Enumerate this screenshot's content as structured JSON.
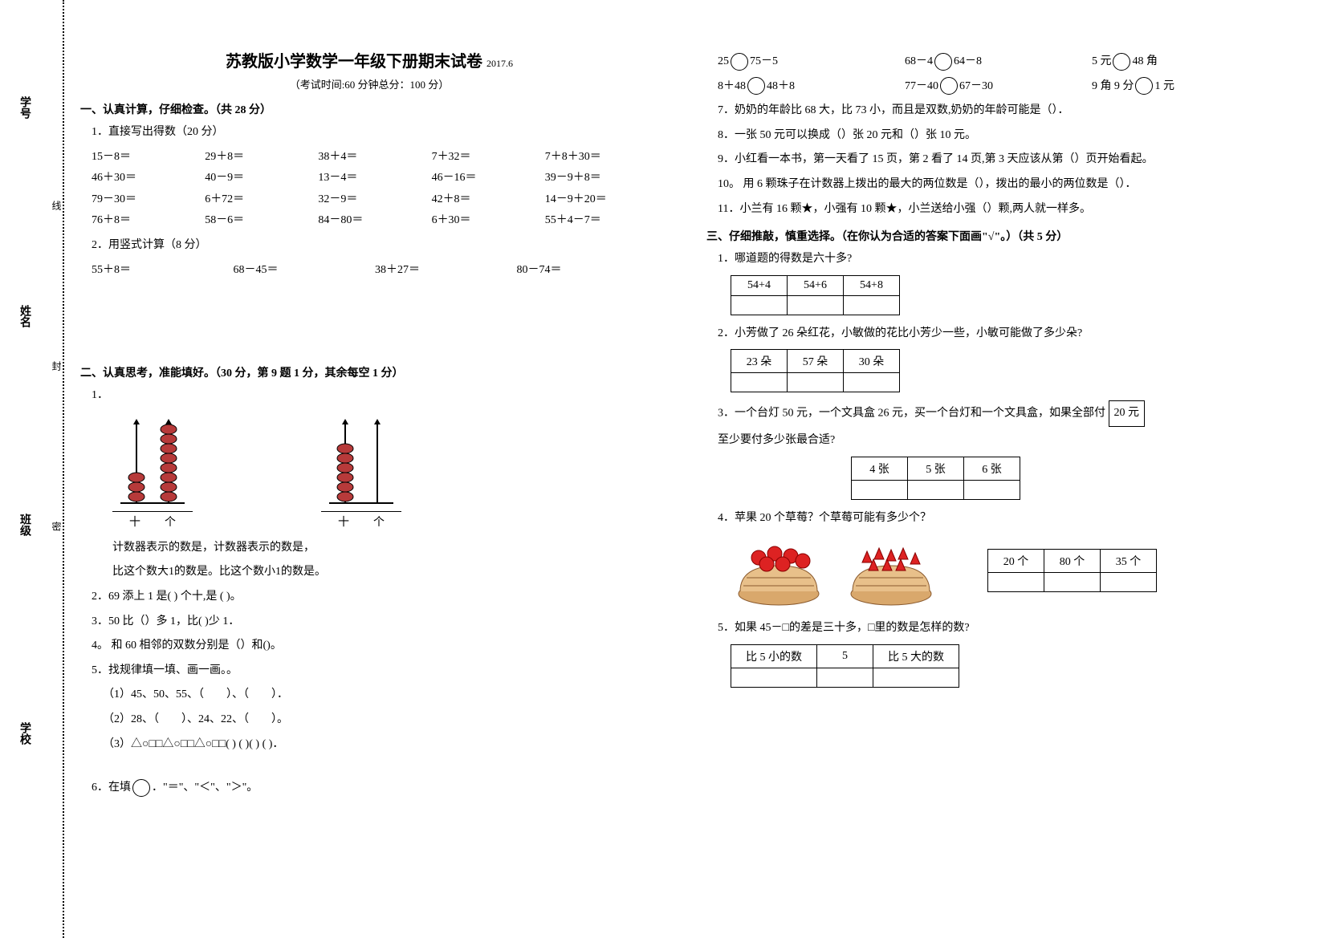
{
  "binding": {
    "labels": [
      "学号",
      "姓名",
      "班级",
      "学校"
    ],
    "seal_text": [
      "封",
      "线",
      "密"
    ]
  },
  "header": {
    "title": "苏教版小学数学一年级下册期末试卷",
    "year": "2017.6",
    "exam_info": "（考试时间:60 分钟总分：100 分）"
  },
  "s1": {
    "heading": "一、认真计算，仔细检查。（共 28 分）",
    "q1_label": "1．直接写出得数（20 分）",
    "q1_rows": [
      [
        "15－8＝",
        "29＋8＝",
        "38＋4＝",
        "7＋32＝",
        "7＋8＋30＝"
      ],
      [
        "46＋30＝",
        "40－9＝",
        "13－4＝",
        "46－16＝",
        "39－9＋8＝"
      ],
      [
        "79－30＝",
        "6＋72＝",
        "32－9＝",
        "42＋8＝",
        "14－9＋20＝"
      ],
      [
        "76＋8＝",
        "58－6＝",
        "84－80＝",
        "6＋30＝",
        "55＋4－7＝"
      ]
    ],
    "q2_label": "2．用竖式计算（8 分）",
    "q2_items": [
      "55＋8＝",
      "68－45＝",
      "38＋27＝",
      "80－74＝"
    ]
  },
  "s2": {
    "heading": "二、认真思考，准能填好。（30 分，第 9 题 1 分，其余每空 1 分）",
    "q1_label": "1．",
    "abacus_cols": [
      "十",
      "个"
    ],
    "q1_line1": "计数器表示的数是，计数器表示的数是，",
    "q1_line2": "比这个数大1的数是。比这个数小1的数是。",
    "q2": "2．69 添上 1 是( ) 个十,是 ( )。",
    "q3": "3．50 比（）多 1，比( )少 1．",
    "q4": "4。 和 60 相邻的双数分别是（）和()。",
    "q5": "5．找规律填一填、画一画。。",
    "q5_1": "（1）45、50、55、（　　）、（　　）．",
    "q5_2": "（2）28、（　　）、24、22、（　　）。",
    "q5_3": "（3）△○□□△○□□△○□□( ) ( )( ) ( )．",
    "q6_prefix": "6．在填",
    "q6_suffix": "．\"＝\"、\"＜\"、\"＞\"。",
    "q6_rows": [
      [
        {
          "l": "25",
          "r": "75－5"
        },
        {
          "l": "68－4",
          "r": "64－8"
        },
        {
          "l": "5 元",
          "r": "48 角"
        }
      ],
      [
        {
          "l": "8＋48",
          "r": "48＋8"
        },
        {
          "l": "77－40",
          "r": "67－30"
        },
        {
          "l": "9 角 9 分",
          "r": "1 元"
        }
      ]
    ],
    "q7": "7．奶奶的年龄比 68 大，比 73 小，而且是双数,奶奶的年龄可能是（）．",
    "q8": "8．一张 50 元可以换成（）张 20 元和（）张 10 元。",
    "q9": "9．小红看一本书，第一天看了 15 页，第 2 看了 14 页,第 3 天应该从第（）页开始看起。",
    "q10": "10。 用 6 颗珠子在计数器上拨出的最大的两位数是（），拨出的最小的两位数是（）．",
    "q11": "11．小兰有 16 颗★，小强有 10 颗★，小兰送给小强（）颗,两人就一样多。"
  },
  "s3": {
    "heading": "三、仔细推敲，慎重选择。（在你认为合适的答案下面画\"√\"。）（共 5 分）",
    "q1": "1．哪道题的得数是六十多?",
    "q1_opts": [
      "54+4",
      "54+6",
      "54+8"
    ],
    "q2": "2．小芳做了 26 朵红花，小敏做的花比小芳少一些，小敏可能做了多少朵?",
    "q2_opts": [
      "23 朵",
      "57 朵",
      "30 朵"
    ],
    "q3_a": "3．一个台灯 50 元，一个文具盒 26 元，买一个台灯和一个文具盒，如果全部付",
    "q3_box": "20 元",
    "q3_b": "至少要付多少张最合适?",
    "q3_opts": [
      "4 张",
      "5 张",
      "6 张"
    ],
    "q4": "4．苹果 20 个草莓？个草莓可能有多少个？",
    "q4_opts": [
      "20 个",
      "80 个",
      "35 个"
    ],
    "q5": "5．如果 45－□的差是三十多，□里的数是怎样的数?",
    "q5_opts": [
      "比 5 小的数",
      "5",
      "比 5 大的数"
    ]
  }
}
